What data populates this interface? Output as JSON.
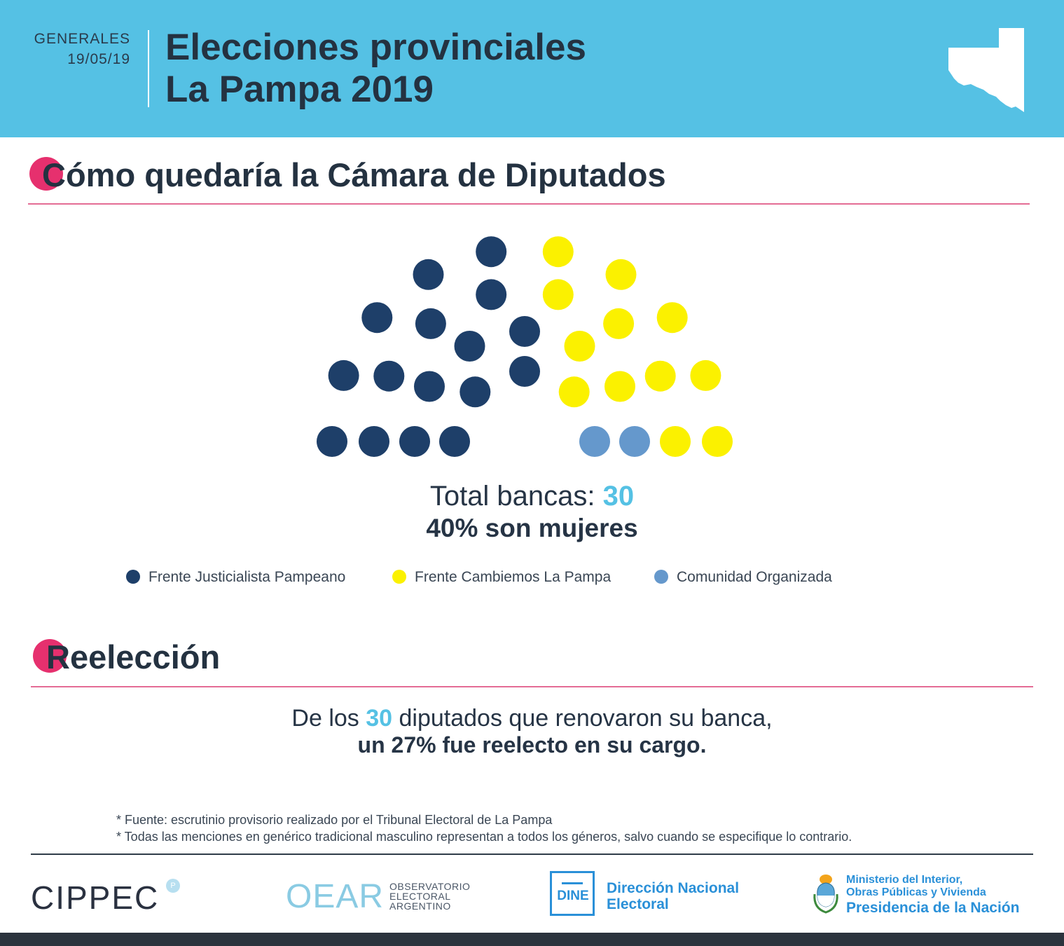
{
  "header": {
    "election_type": "GENERALES",
    "date": "19/05/19",
    "title_line1": "Elecciones provinciales",
    "title_line2": "La Pampa 2019"
  },
  "section_chamber": {
    "title": "Cómo quedaría la Cámara de Diputados"
  },
  "chart_data": {
    "type": "parliament",
    "title": "Cómo quedaría la Cámara de Diputados",
    "series": [
      {
        "name": "Frente Justicialista Pampeano",
        "seats": 16,
        "color": "#1e3f69"
      },
      {
        "name": "Frente Cambiemos La Pampa",
        "seats": 12,
        "color": "#fbf100"
      },
      {
        "name": "Comunidad Organizada",
        "seats": 2,
        "color": "#6598cc"
      }
    ],
    "total_seats": 30,
    "women_percent": 40
  },
  "summary": {
    "total_label": "Total bancas:",
    "total_value": "30",
    "women_text": "40% son mujeres"
  },
  "legend": [
    {
      "label": "Frente Justicialista Pampeano",
      "color": "#1e3f69"
    },
    {
      "label": "Frente Cambiemos La Pampa",
      "color": "#fbf100"
    },
    {
      "label": "Comunidad Organizada",
      "color": "#6598cc"
    }
  ],
  "section_reelection": {
    "title": "Reelección",
    "line1_pre": "De los",
    "line1_num": "30",
    "line1_post": "diputados que renovaron su banca,",
    "line2": "un 27% fue reelecto en su cargo."
  },
  "notes": [
    "* Fuente: escrutinio provisorio realizado por el Tribunal Electoral de La Pampa",
    "* Todas las menciones en genérico tradicional masculino representan a todos los géneros, salvo cuando se especifique lo contrario."
  ],
  "logos": {
    "cippec": "CIPPEC",
    "oear_mark": "OEAR",
    "oear_text": "OBSERVATORIO ELECTORAL ARGENTINO",
    "dine_mark": "DINE",
    "dine_line1": "Dirección Nacional",
    "dine_line2": "Electoral",
    "ministry_line1": "Ministerio del Interior,",
    "ministry_line2": "Obras Públicas y Vivienda",
    "ministry_line3": "Presidencia de la Nación"
  }
}
